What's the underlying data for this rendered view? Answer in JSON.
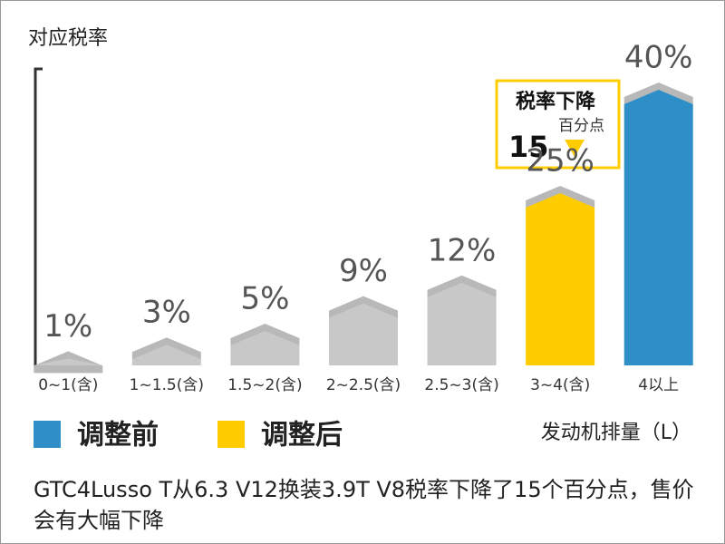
{
  "chart_data": {
    "type": "bar",
    "y_label": "对应税率",
    "x_label": "发动机排量（L）",
    "categories": [
      "0~1(含)",
      "1~1.5(含)",
      "1.5~2(含)",
      "2~2.5(含)",
      "2.5~3(含)",
      "3~4(含)",
      "4以上"
    ],
    "values": [
      1,
      3,
      5,
      9,
      12,
      25,
      40
    ],
    "value_labels": [
      "1%",
      "3%",
      "5%",
      "9%",
      "12%",
      "25%",
      "40%"
    ],
    "colors": [
      "#c8c8c8",
      "#c8c8c8",
      "#c8c8c8",
      "#c8c8c8",
      "#c8c8c8",
      "#ffcc00",
      "#2e8fc8"
    ],
    "ylim": [
      0,
      45
    ],
    "legend": [
      {
        "name": "调整前",
        "color": "#2e8fc8"
      },
      {
        "name": "调整后",
        "color": "#ffcc00"
      }
    ],
    "annotation": {
      "title": "税率下降",
      "unit": "百分点",
      "amount": "15"
    },
    "caption": "GTC4Lusso T从6.3 V12换装3.9T V8税率下降了15个百分点，售价会有大幅下降"
  }
}
